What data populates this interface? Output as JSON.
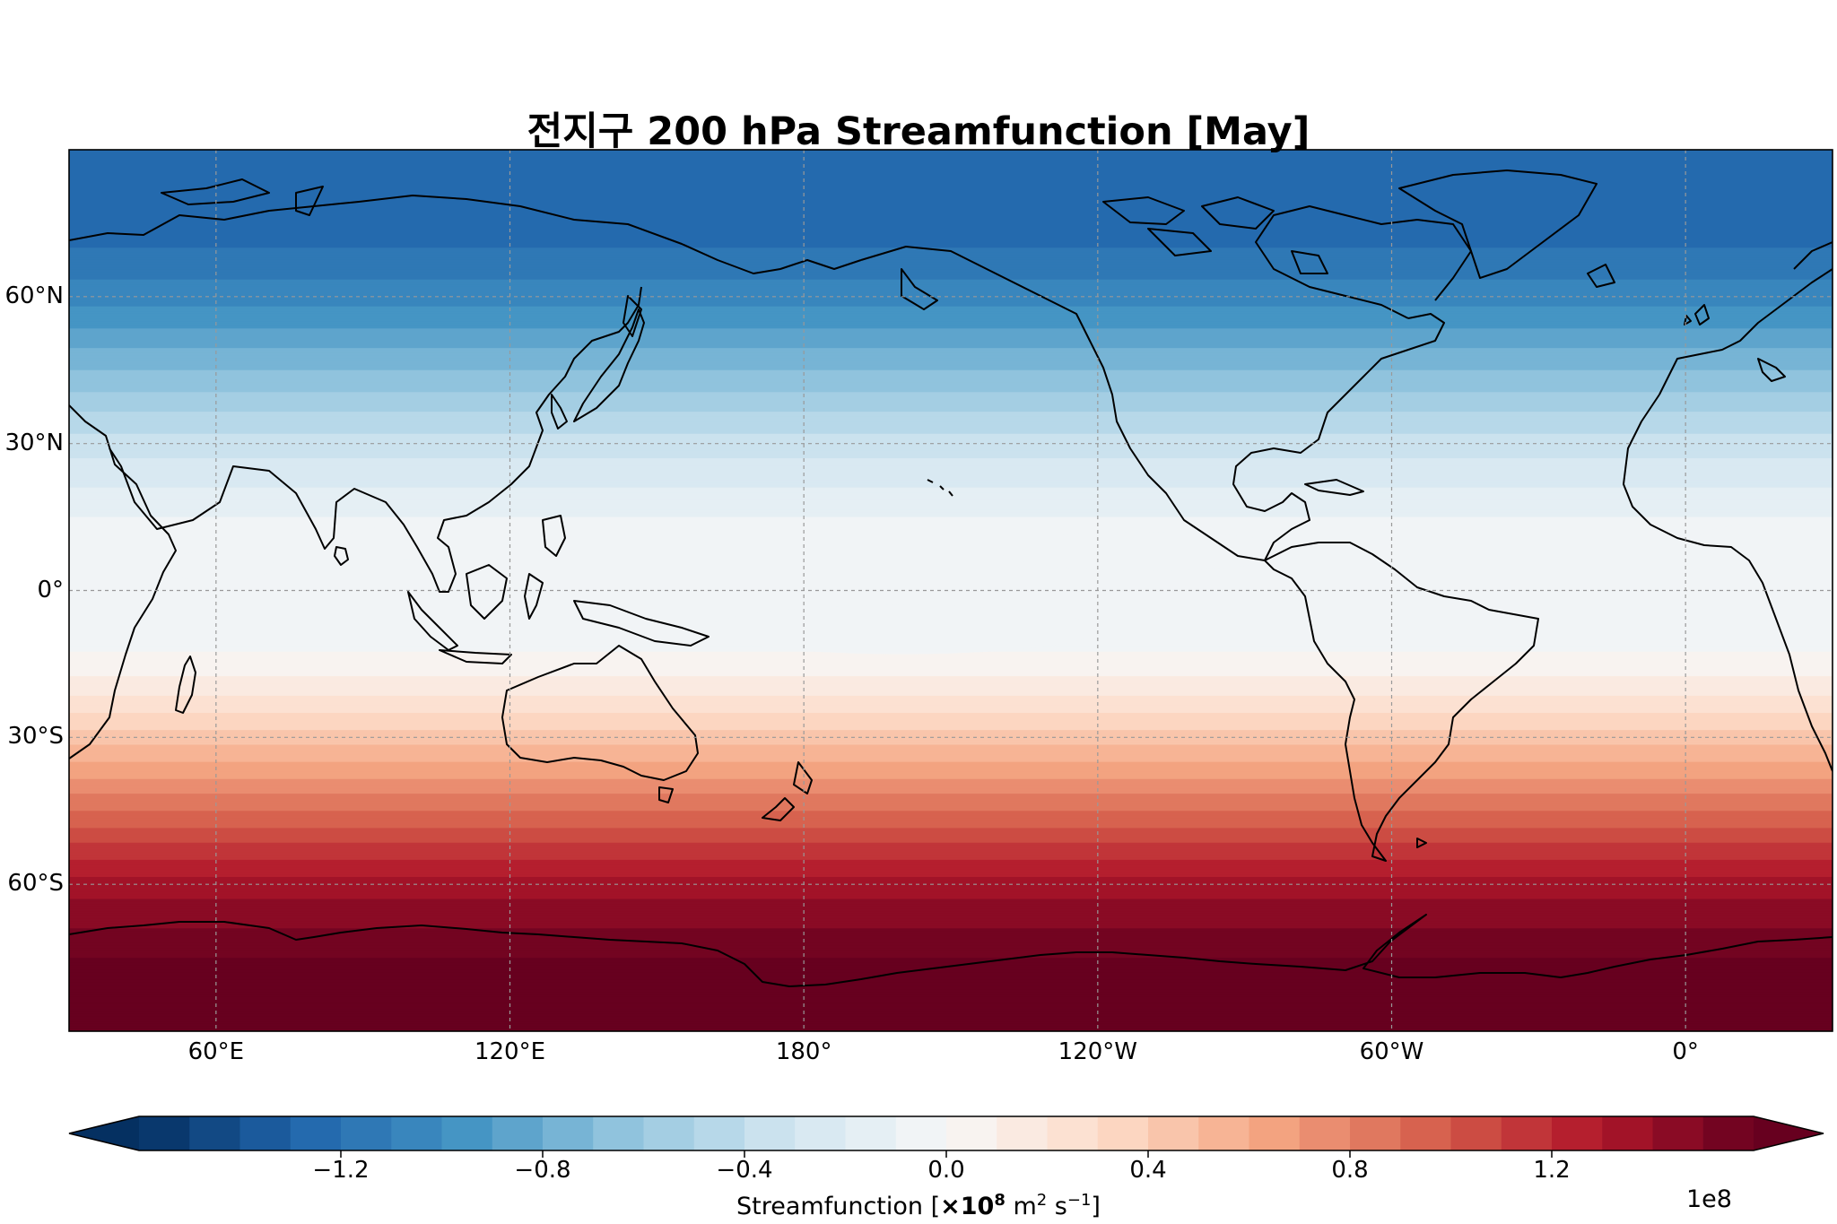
{
  "title": "전지구 200 hPa Streamfunction [May]",
  "map": {
    "projection": "PlateCarree",
    "central_longitude": 180,
    "lon_range": [
      30,
      390
    ],
    "lat_range": [
      -90,
      90
    ],
    "gridlines": true,
    "coastlines": true,
    "lat_ticks": [
      {
        "lat": 60,
        "label": "60°N"
      },
      {
        "lat": 30,
        "label": "30°N"
      },
      {
        "lat": 0,
        "label": "0°"
      },
      {
        "lat": -30,
        "label": "30°S"
      },
      {
        "lat": -60,
        "label": "60°S"
      }
    ],
    "lon_ticks": [
      {
        "lon": 60,
        "label": "60°E"
      },
      {
        "lon": 120,
        "label": "120°E"
      },
      {
        "lon": 180,
        "label": "180°"
      },
      {
        "lon": 240,
        "label": "120°W"
      },
      {
        "lon": 300,
        "label": "60°W"
      },
      {
        "lon": 360,
        "label": "0°"
      }
    ]
  },
  "colorbar": {
    "colormap": "RdBu_r",
    "extend": "both",
    "min": -1.6,
    "max": 1.6,
    "step": 0.1,
    "ticks": [
      {
        "value": -1.2,
        "label": "−1.2"
      },
      {
        "value": -0.8,
        "label": "−0.8"
      },
      {
        "value": -0.4,
        "label": "−0.4"
      },
      {
        "value": 0.0,
        "label": "0.0"
      },
      {
        "value": 0.4,
        "label": "0.4"
      },
      {
        "value": 0.8,
        "label": "0.8"
      },
      {
        "value": 1.2,
        "label": "1.2"
      }
    ],
    "label_text": "Streamfunction [",
    "label_mult": "×10",
    "label_exp": "8",
    "label_unit1": " m",
    "label_unit1_exp": "2",
    "label_unit2": " s",
    "label_unit2_exp": "−1",
    "label_close": "]",
    "offset_text": "1e8"
  },
  "chart_data": {
    "type": "heatmap",
    "title": "전지구 200 hPa Streamfunction [May]",
    "field": "200 hPa streamfunction",
    "unit": "×10^8 m^2 s^-1",
    "zonal_profile_lat": [
      85,
      70,
      60,
      45,
      30,
      15,
      0,
      -10,
      -20,
      -30,
      -45,
      -60,
      -75,
      -85
    ],
    "zonal_profile_value": [
      -1.25,
      -1.2,
      -1.05,
      -0.7,
      -0.35,
      -0.1,
      -0.05,
      -0.05,
      0.15,
      0.45,
      0.9,
      1.35,
      1.6,
      1.7
    ],
    "vmin": -1.6,
    "vmax": 1.6,
    "levels_step": 0.1
  }
}
